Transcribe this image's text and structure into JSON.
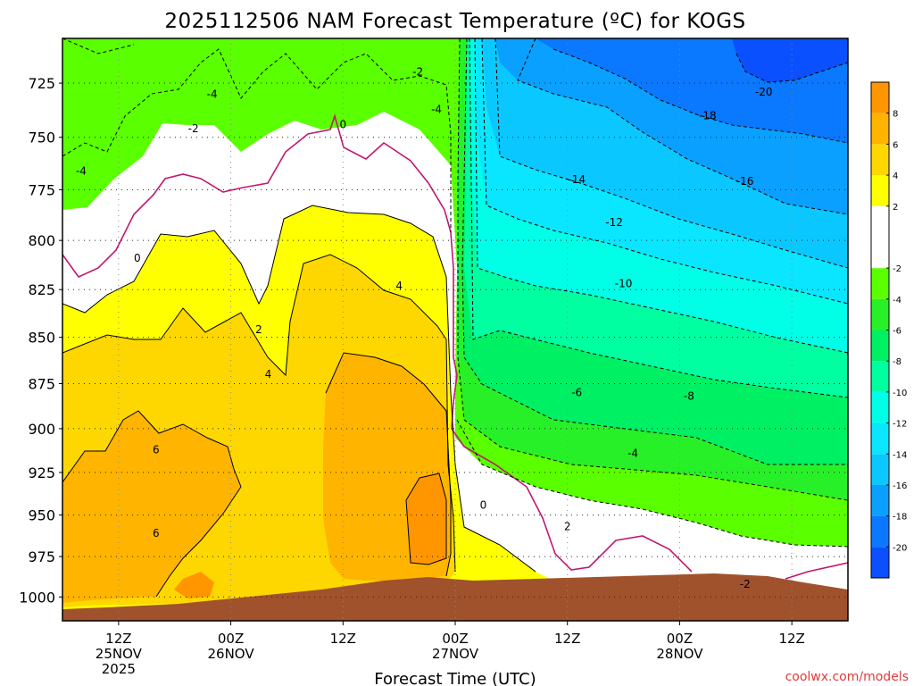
{
  "chart_data": {
    "type": "heatmap",
    "title": "2025112506 NAM Forecast Temperature (ºC) for KOGS",
    "xlabel": "Forecast Time (UTC)",
    "ylabel": "",
    "y_axis": {
      "scale": "log-pressure, inverted",
      "units": "hPa",
      "ticks": [
        "725",
        "750",
        "775",
        "800",
        "825",
        "850",
        "875",
        "900",
        "925",
        "950",
        "975",
        "1000"
      ],
      "ylim": [
        1015,
        705
      ]
    },
    "x_axis": {
      "xlim": [
        "2025-11-25T06Z",
        "2025-11-28T18Z"
      ],
      "ticks": [
        {
          "time": "2025-11-25T12Z",
          "label": [
            "12Z",
            "25NOV",
            "2025"
          ]
        },
        {
          "time": "2025-11-26T00Z",
          "label": [
            "00Z",
            "26NOV"
          ]
        },
        {
          "time": "2025-11-26T12Z",
          "label": [
            "12Z"
          ]
        },
        {
          "time": "2025-11-27T00Z",
          "label": [
            "00Z",
            "27NOV"
          ]
        },
        {
          "time": "2025-11-27T12Z",
          "label": [
            "12Z"
          ]
        },
        {
          "time": "2025-11-28T00Z",
          "label": [
            "00Z",
            "28NOV"
          ]
        },
        {
          "time": "2025-11-28T12Z",
          "label": [
            "12Z"
          ]
        }
      ]
    },
    "grid": true,
    "colorbar": {
      "position": "right",
      "levels": [
        -22,
        -20,
        -18,
        -16,
        -14,
        -12,
        -10,
        -8,
        -6,
        -4,
        -2,
        2,
        4,
        6,
        8,
        10
      ],
      "labels": [
        "-20",
        "-18",
        "-16",
        "-14",
        "-12",
        "-10",
        "-8",
        "-6",
        "-4",
        "-2",
        "2",
        "4",
        "6",
        "8"
      ],
      "colors": [
        "#0a50ff",
        "#0a78ff",
        "#0aa0ff",
        "#0ac8ff",
        "#0ae6ff",
        "#00ffe6",
        "#00ffa0",
        "#00f064",
        "#28f028",
        "#5aff00",
        "#ffffff",
        "#ffff00",
        "#ffd700",
        "#ffb400",
        "#ff9600"
      ]
    },
    "contour_labels": [
      {
        "value": "-2",
        "time": "2025-11-26T20Z",
        "pressure": 720
      },
      {
        "value": "-4",
        "time": "2025-11-25T22Z",
        "pressure": 730
      },
      {
        "value": "-4",
        "time": "2025-11-26T22Z",
        "pressure": 737
      },
      {
        "value": "-2",
        "time": "2025-11-25T20Z",
        "pressure": 746
      },
      {
        "value": "-4",
        "time": "2025-11-25T08Z",
        "pressure": 766
      },
      {
        "value": "0",
        "time": "2025-11-26T12Z",
        "pressure": 744
      },
      {
        "value": "0",
        "time": "2025-11-25T14Z",
        "pressure": 809
      },
      {
        "value": "2",
        "time": "2025-11-26T03Z",
        "pressure": 846
      },
      {
        "value": "4",
        "time": "2025-11-26T04Z",
        "pressure": 870
      },
      {
        "value": "4",
        "time": "2025-11-26T18Z",
        "pressure": 823
      },
      {
        "value": "6",
        "time": "2025-11-25T16Z",
        "pressure": 912
      },
      {
        "value": "6",
        "time": "2025-11-25T16Z",
        "pressure": 961
      },
      {
        "value": "0",
        "time": "2025-11-27T03Z",
        "pressure": 944
      },
      {
        "value": "2",
        "time": "2025-11-27T12Z",
        "pressure": 957
      },
      {
        "value": "-2",
        "time": "2025-11-28T07Z",
        "pressure": 992
      },
      {
        "value": "-4",
        "time": "2025-11-27T19Z",
        "pressure": 914
      },
      {
        "value": "-6",
        "time": "2025-11-27T13Z",
        "pressure": 880
      },
      {
        "value": "-8",
        "time": "2025-11-28T01Z",
        "pressure": 882
      },
      {
        "value": "-10",
        "time": "2025-11-27T18Z",
        "pressure": 822
      },
      {
        "value": "-12",
        "time": "2025-11-27T17Z",
        "pressure": 791
      },
      {
        "value": "-14",
        "time": "2025-11-27T13Z",
        "pressure": 770
      },
      {
        "value": "-16",
        "time": "2025-11-28T07Z",
        "pressure": 771
      },
      {
        "value": "-18",
        "time": "2025-11-28T03Z",
        "pressure": 740
      },
      {
        "value": "-20",
        "time": "2025-11-28T09Z",
        "pressure": 729
      }
    ]
  },
  "footer": {
    "credit": "coolwx.com/models"
  }
}
